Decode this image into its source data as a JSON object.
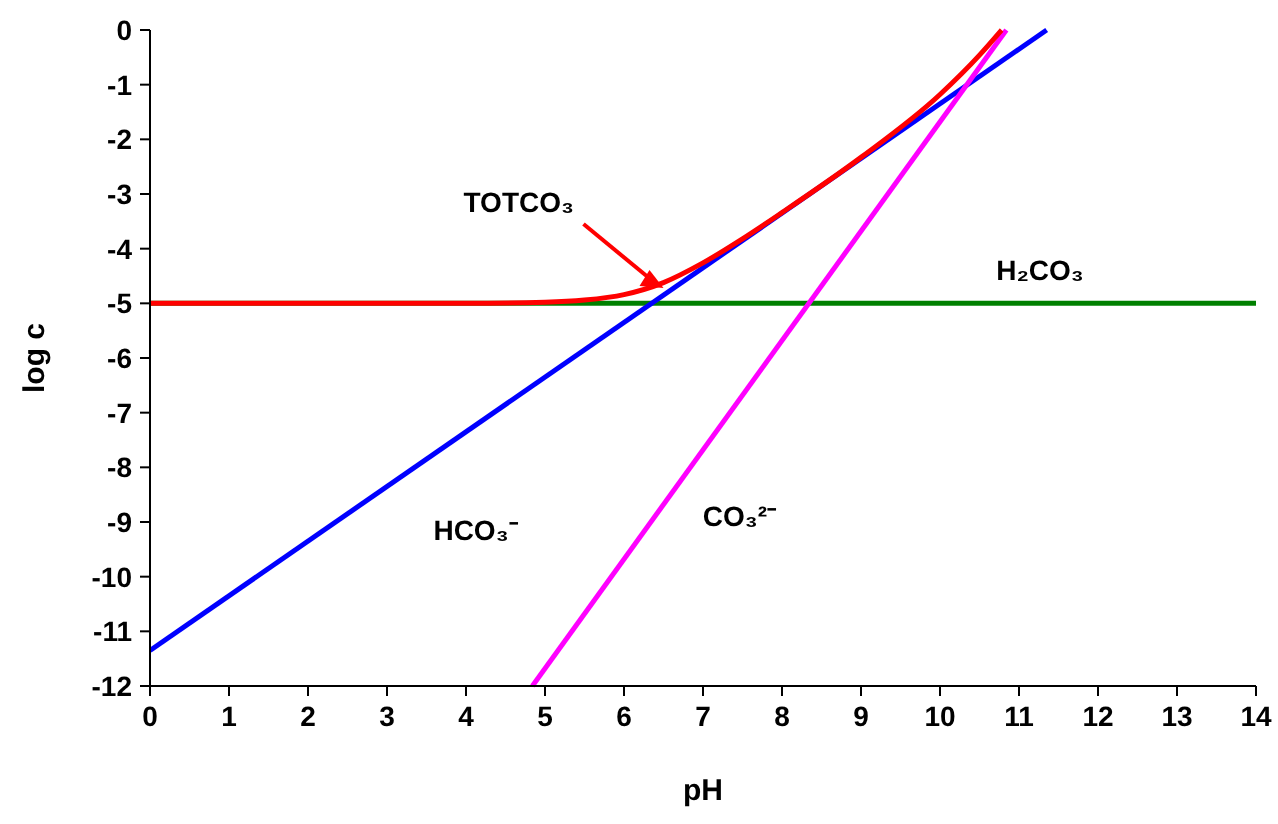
{
  "chart_data": {
    "type": "line",
    "xlabel": "pH",
    "ylabel": "log c",
    "xlim": [
      0,
      14
    ],
    "ylim": [
      -12,
      0
    ],
    "xticks": [
      0,
      1,
      2,
      3,
      4,
      5,
      6,
      7,
      8,
      9,
      10,
      11,
      12,
      13,
      14
    ],
    "yticks": [
      -12,
      -11,
      -10,
      -9,
      -8,
      -7,
      -6,
      -5,
      -4,
      -3,
      -2,
      -1,
      0
    ],
    "grid": false,
    "marker": "none",
    "line_style": "solid",
    "series": [
      {
        "color": "#008000",
        "x": [
          0,
          14
        ],
        "values": [
          -5,
          -5
        ]
      },
      {
        "color": "#0000ff",
        "x": [
          0,
          11.35
        ],
        "values": [
          -11.35,
          0
        ]
      },
      {
        "color": "#ff00ff",
        "x": [
          4.84,
          10.84
        ],
        "values": [
          -12,
          0
        ]
      },
      {
        "color": "#ff0000",
        "x": [
          0,
          4,
          5,
          5.5,
          6,
          6.5,
          7,
          7.5,
          8,
          9,
          10,
          10.5,
          10.78
        ],
        "values": [
          -5,
          -5,
          -4.98,
          -4.94,
          -4.84,
          -4.62,
          -4.26,
          -3.82,
          -3.34,
          -2.33,
          -1.18,
          -0.46,
          0
        ]
      }
    ],
    "annotations": [
      {
        "text": "TOTCO₃",
        "x": 6.5,
        "y": -4.72
      },
      "H₂CO₃",
      "HCO₃⁻",
      "CO₃²⁻"
    ]
  }
}
